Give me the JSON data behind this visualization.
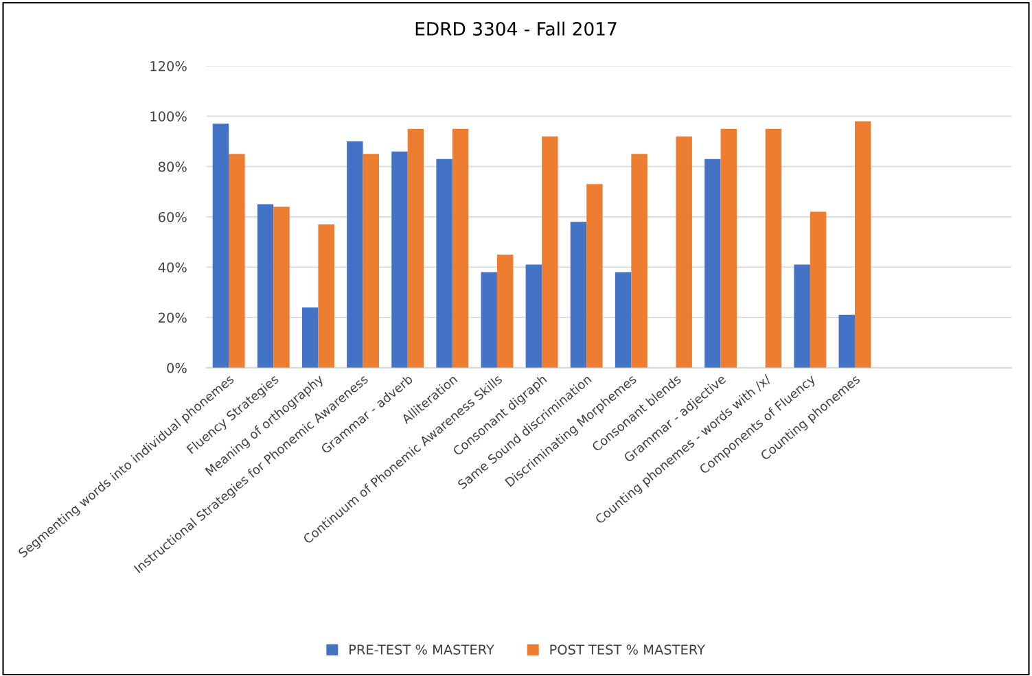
{
  "chart_data": {
    "type": "bar",
    "title": "EDRD 3304 - Fall 2017",
    "categories": [
      "Segmenting words into individual phonemes",
      "Fluency Strategies",
      "Meaning of orthography",
      "Instructional Strategies for Phonemic Awareness",
      "Grammar - adverb",
      "Alliteration",
      "Continuum of Phonemic Awareness Skills",
      "Consonant digraph",
      "Same Sound discrimination",
      "Discriminating Morphemes",
      "Consonant blends",
      "Grammar - adjective",
      "Counting phonemes - words with /x/",
      "Components of Fluency",
      "Counting phonemes",
      null,
      null,
      null
    ],
    "series": [
      {
        "name": "PRE-TEST % MASTERY",
        "color": "#4472c4",
        "values": [
          97,
          65,
          24,
          90,
          86,
          83,
          38,
          41,
          58,
          38,
          null,
          83,
          null,
          41,
          21,
          null,
          null,
          null
        ]
      },
      {
        "name": "POST TEST % MASTERY",
        "color": "#ed7d31",
        "values": [
          85,
          64,
          57,
          85,
          95,
          95,
          45,
          92,
          73,
          85,
          92,
          95,
          95,
          62,
          98,
          null,
          null,
          null
        ]
      }
    ],
    "ylim": [
      0,
      120
    ],
    "yticks": [
      {
        "value": 0,
        "label": "0%"
      },
      {
        "value": 20,
        "label": "20%"
      },
      {
        "value": 40,
        "label": "40%"
      },
      {
        "value": 60,
        "label": "60%"
      },
      {
        "value": 80,
        "label": "80%"
      },
      {
        "value": 100,
        "label": "100%"
      },
      {
        "value": 120,
        "label": "120%"
      }
    ],
    "grid": "y",
    "legend": "bottom"
  }
}
